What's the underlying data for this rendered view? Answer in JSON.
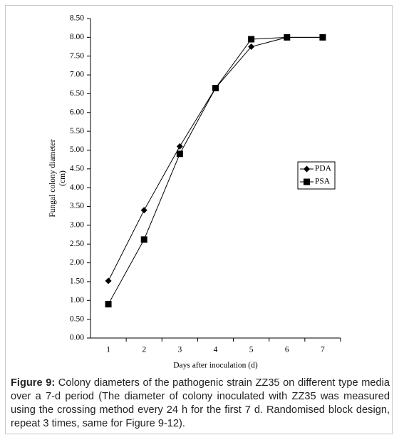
{
  "chart_data": {
    "type": "line",
    "xlabel": "Days after inoculation (d)",
    "ylabel": [
      "Fungal colony diameter",
      "(cm)"
    ],
    "categories": [
      "1",
      "2",
      "3",
      "4",
      "5",
      "6",
      "7"
    ],
    "series": [
      {
        "name": "PDA",
        "color": "#000000",
        "marker": "diamond",
        "values": [
          1.52,
          3.4,
          5.1,
          6.65,
          7.75,
          8.0,
          8.0
        ]
      },
      {
        "name": "PSA",
        "color": "#000000",
        "marker": "square",
        "values": [
          0.9,
          2.62,
          4.9,
          6.65,
          7.95,
          8.0,
          8.0
        ]
      }
    ],
    "ylim": [
      0,
      8.5
    ],
    "yticks": [
      {
        "value": 0,
        "label": "0.00"
      },
      {
        "value": 0.5,
        "label": "0.50"
      },
      {
        "value": 1,
        "label": "1.00"
      },
      {
        "value": 1.5,
        "label": "1.50"
      },
      {
        "value": 2,
        "label": "2.00"
      },
      {
        "value": 2.5,
        "label": "2.50"
      },
      {
        "value": 3,
        "label": "3.00"
      },
      {
        "value": 3.5,
        "label": "3.50"
      },
      {
        "value": 4,
        "label": "4.00"
      },
      {
        "value": 4.5,
        "label": "4.50"
      },
      {
        "value": 5,
        "label": "5.00"
      },
      {
        "value": 5.5,
        "label": "5.50"
      },
      {
        "value": 6,
        "label": "6.00"
      },
      {
        "value": 6.5,
        "label": "6.50"
      },
      {
        "value": 7,
        "label": "7.00"
      },
      {
        "value": 7.5,
        "label": "7.50"
      },
      {
        "value": 8,
        "label": "8.00"
      },
      {
        "value": 8.5,
        "label": "8.50"
      }
    ],
    "grid": false,
    "legend": "right"
  },
  "caption": {
    "label": "Figure 9:",
    "text": "Colony diameters of the pathogenic strain ZZ35 on different type media over a 7-d period (The diameter of colony inoculated with ZZ35 was measured using the crossing method every 24 h for the first 7 d. Randomised block design, repeat 3 times, same for Figure 9-12)."
  }
}
